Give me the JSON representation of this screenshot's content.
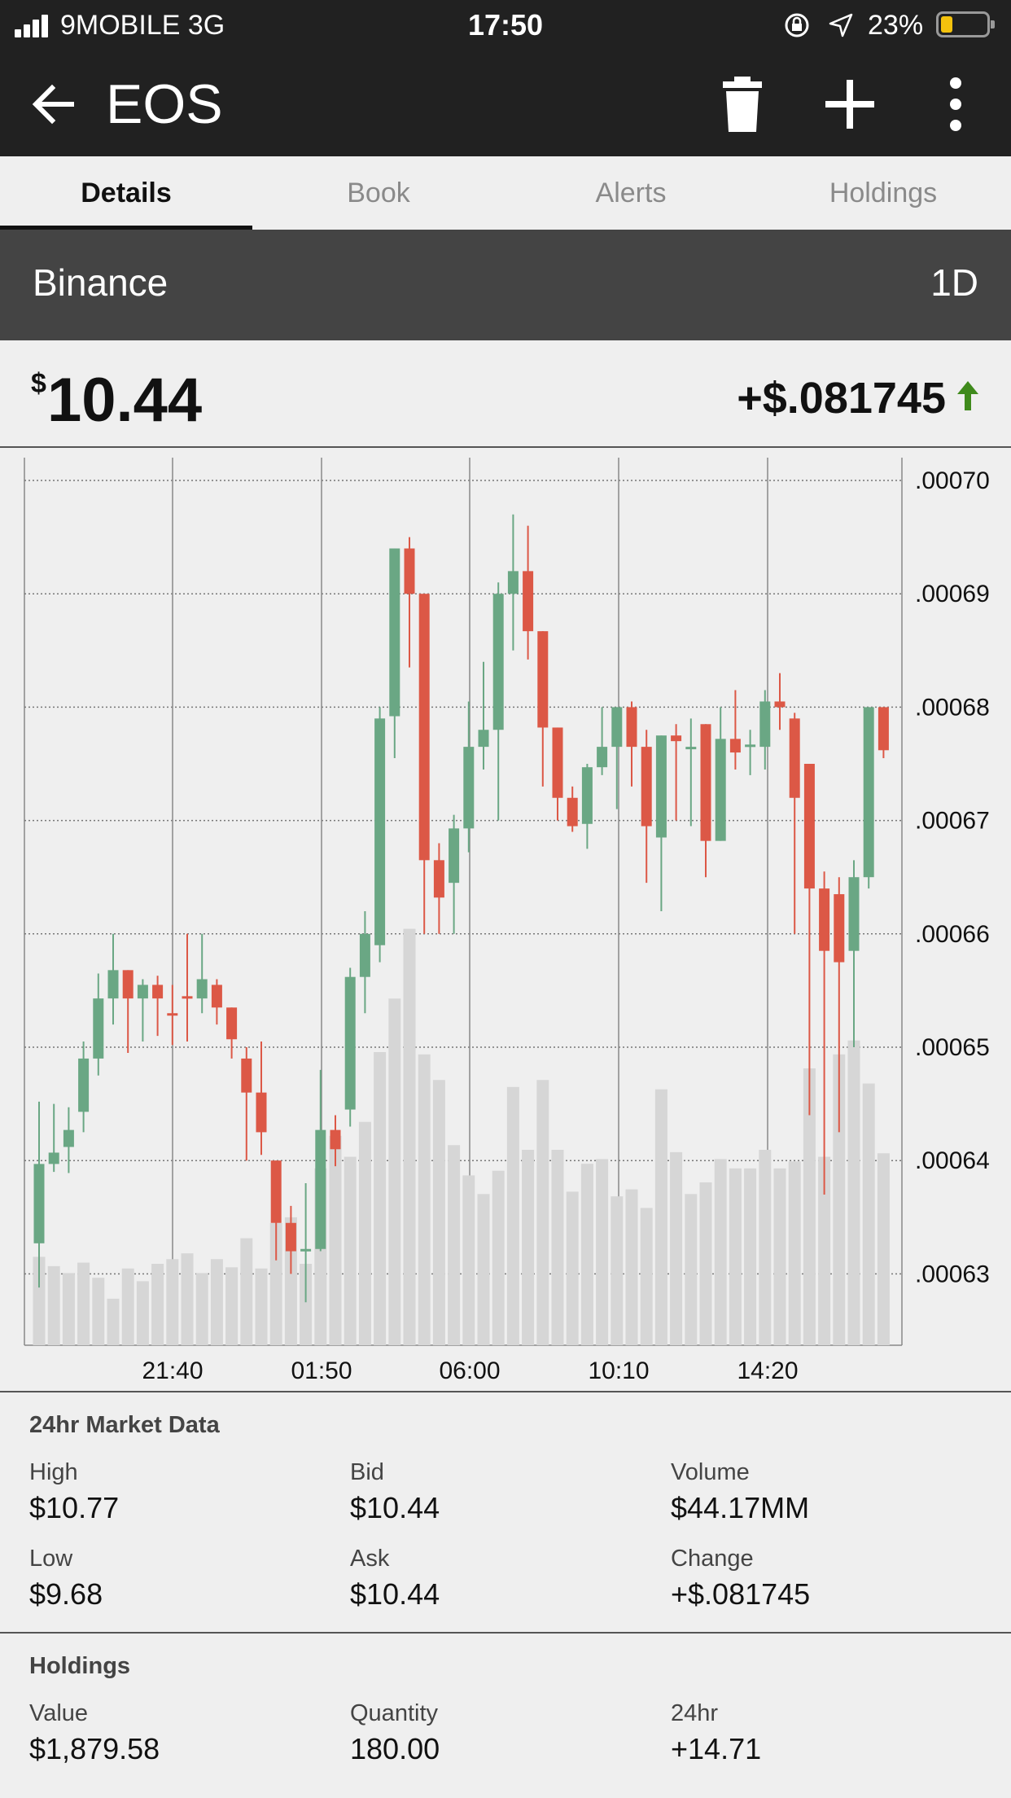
{
  "status_bar": {
    "carrier": "9MOBILE   3G",
    "time": "17:50",
    "battery_pct": "23%",
    "battery_level": 0.23,
    "icons": [
      "signal-icon",
      "rotation-lock-icon",
      "location-arrow-icon",
      "battery-icon"
    ]
  },
  "app_bar": {
    "title": "EOS",
    "icons": [
      "back-arrow-icon",
      "trash-icon",
      "plus-icon",
      "more-vert-icon"
    ]
  },
  "tabs": [
    {
      "label": "Details",
      "active": true
    },
    {
      "label": "Book",
      "active": false
    },
    {
      "label": "Alerts",
      "active": false
    },
    {
      "label": "Holdings",
      "active": false
    }
  ],
  "exchange": {
    "name": "Binance",
    "range": "1D"
  },
  "price": {
    "currency": "$",
    "value": "10.44",
    "change": "+$.081745",
    "direction": "up"
  },
  "colors": {
    "up": "#6aa784",
    "down": "#dc5846",
    "volume": "#d6d6d6",
    "arrow": "#3f8a1c",
    "appbar": "#212121",
    "exchange_bar": "#444444"
  },
  "chart_data": {
    "type": "candlestick",
    "y_tick_labels": [
      ".00070",
      ".00069",
      ".00068",
      ".00067",
      ".00066",
      ".00065",
      ".00064",
      ".00063"
    ],
    "ylim": [
      0.000626,
      0.000707
    ],
    "x_tick_labels": [
      "21:40",
      "01:50",
      "06:00",
      "10:10",
      "14:20"
    ],
    "grid": true,
    "candles": [
      {
        "o": 0.0006327,
        "c": 0.0006397,
        "h": 0.0006452,
        "l": 0.0006288
      },
      {
        "o": 0.0006397,
        "c": 0.0006407,
        "h": 0.000645,
        "l": 0.000639
      },
      {
        "o": 0.0006412,
        "c": 0.0006427,
        "h": 0.0006447,
        "l": 0.0006389
      },
      {
        "o": 0.0006443,
        "c": 0.000649,
        "h": 0.0006505,
        "l": 0.0006425
      },
      {
        "o": 0.000649,
        "c": 0.0006543,
        "h": 0.0006565,
        "l": 0.0006475
      },
      {
        "o": 0.0006543,
        "c": 0.0006568,
        "h": 0.00066,
        "l": 0.000652
      },
      {
        "o": 0.0006568,
        "c": 0.0006543,
        "h": 0.0006568,
        "l": 0.0006495
      },
      {
        "o": 0.0006543,
        "c": 0.0006555,
        "h": 0.000656,
        "l": 0.0006505
      },
      {
        "o": 0.0006555,
        "c": 0.0006543,
        "h": 0.0006563,
        "l": 0.000651
      },
      {
        "o": 0.000653,
        "c": 0.0006528,
        "h": 0.0006555,
        "l": 0.0006502
      },
      {
        "o": 0.0006545,
        "c": 0.0006543,
        "h": 0.00066,
        "l": 0.0006505
      },
      {
        "o": 0.0006543,
        "c": 0.000656,
        "h": 0.00066,
        "l": 0.000653
      },
      {
        "o": 0.0006555,
        "c": 0.0006535,
        "h": 0.000656,
        "l": 0.000652
      },
      {
        "o": 0.0006535,
        "c": 0.0006507,
        "h": 0.0006535,
        "l": 0.000649
      },
      {
        "o": 0.000649,
        "c": 0.000646,
        "h": 0.00065,
        "l": 0.00064
      },
      {
        "o": 0.000646,
        "c": 0.0006425,
        "h": 0.0006505,
        "l": 0.0006405
      },
      {
        "o": 0.00064,
        "c": 0.0006345,
        "h": 0.00064,
        "l": 0.0006312
      },
      {
        "o": 0.0006345,
        "c": 0.000632,
        "h": 0.000636,
        "l": 0.00063
      },
      {
        "o": 0.000632,
        "c": 0.0006322,
        "h": 0.000638,
        "l": 0.0006275
      },
      {
        "o": 0.0006322,
        "c": 0.0006427,
        "h": 0.000648,
        "l": 0.000632
      },
      {
        "o": 0.0006427,
        "c": 0.000641,
        "h": 0.000644,
        "l": 0.0006395
      },
      {
        "o": 0.0006445,
        "c": 0.0006562,
        "h": 0.000657,
        "l": 0.000643
      },
      {
        "o": 0.0006562,
        "c": 0.00066,
        "h": 0.000662,
        "l": 0.000653
      },
      {
        "o": 0.000659,
        "c": 0.000679,
        "h": 0.00068,
        "l": 0.0006575
      },
      {
        "o": 0.0006792,
        "c": 0.000694,
        "h": 0.000694,
        "l": 0.0006755
      },
      {
        "o": 0.000694,
        "c": 0.00069,
        "h": 0.000695,
        "l": 0.0006835
      },
      {
        "o": 0.00069,
        "c": 0.0006665,
        "h": 0.00069,
        "l": 0.00066
      },
      {
        "o": 0.0006665,
        "c": 0.0006632,
        "h": 0.000668,
        "l": 0.00066
      },
      {
        "o": 0.0006645,
        "c": 0.0006693,
        "h": 0.0006705,
        "l": 0.00066
      },
      {
        "o": 0.0006693,
        "c": 0.0006765,
        "h": 0.0006805,
        "l": 0.0006672
      },
      {
        "o": 0.0006765,
        "c": 0.000678,
        "h": 0.000684,
        "l": 0.0006745
      },
      {
        "o": 0.000678,
        "c": 0.00069,
        "h": 0.000691,
        "l": 0.00067
      },
      {
        "o": 0.00069,
        "c": 0.000692,
        "h": 0.000697,
        "l": 0.000685
      },
      {
        "o": 0.000692,
        "c": 0.0006867,
        "h": 0.000696,
        "l": 0.0006842
      },
      {
        "o": 0.0006867,
        "c": 0.0006782,
        "h": 0.0006867,
        "l": 0.000673
      },
      {
        "o": 0.0006782,
        "c": 0.000672,
        "h": 0.0006782,
        "l": 0.00067
      },
      {
        "o": 0.000672,
        "c": 0.0006695,
        "h": 0.000673,
        "l": 0.000669
      },
      {
        "o": 0.0006697,
        "c": 0.0006747,
        "h": 0.000675,
        "l": 0.0006675
      },
      {
        "o": 0.0006747,
        "c": 0.0006765,
        "h": 0.00068,
        "l": 0.000674
      },
      {
        "o": 0.0006765,
        "c": 0.00068,
        "h": 0.00068,
        "l": 0.000671
      },
      {
        "o": 0.00068,
        "c": 0.0006765,
        "h": 0.0006805,
        "l": 0.000673
      },
      {
        "o": 0.0006765,
        "c": 0.0006695,
        "h": 0.000678,
        "l": 0.0006645
      },
      {
        "o": 0.0006685,
        "c": 0.0006775,
        "h": 0.0006775,
        "l": 0.000662
      },
      {
        "o": 0.0006775,
        "c": 0.000677,
        "h": 0.0006785,
        "l": 0.00067
      },
      {
        "o": 0.0006765,
        "c": 0.0006765,
        "h": 0.000679,
        "l": 0.0006695
      },
      {
        "o": 0.0006785,
        "c": 0.0006682,
        "h": 0.0006785,
        "l": 0.000665
      },
      {
        "o": 0.0006682,
        "c": 0.0006772,
        "h": 0.00068,
        "l": 0.0006682
      },
      {
        "o": 0.0006772,
        "c": 0.000676,
        "h": 0.0006815,
        "l": 0.0006745
      },
      {
        "o": 0.0006765,
        "c": 0.0006767,
        "h": 0.000678,
        "l": 0.000674
      },
      {
        "o": 0.0006765,
        "c": 0.0006805,
        "h": 0.0006815,
        "l": 0.0006745
      },
      {
        "o": 0.0006805,
        "c": 0.00068,
        "h": 0.000683,
        "l": 0.000678
      },
      {
        "o": 0.000679,
        "c": 0.000672,
        "h": 0.0006795,
        "l": 0.00066
      },
      {
        "o": 0.000675,
        "c": 0.000664,
        "h": 0.000675,
        "l": 0.000644
      },
      {
        "o": 0.000664,
        "c": 0.0006585,
        "h": 0.0006655,
        "l": 0.000637
      },
      {
        "o": 0.0006635,
        "c": 0.0006575,
        "h": 0.000665,
        "l": 0.0006425
      },
      {
        "o": 0.0006585,
        "c": 0.000665,
        "h": 0.0006665,
        "l": 0.00065
      },
      {
        "o": 0.000665,
        "c": 0.00068,
        "h": 0.00068,
        "l": 0.000664
      },
      {
        "o": 0.00068,
        "c": 0.0006762,
        "h": 0.00068,
        "l": 0.0006755
      }
    ],
    "volume": [
      76,
      68,
      62,
      71,
      58,
      40,
      66,
      55,
      70,
      74,
      79,
      62,
      74,
      67,
      92,
      66,
      105,
      110,
      70,
      152,
      180,
      162,
      192,
      252,
      298,
      358,
      250,
      228,
      172,
      146,
      130,
      150,
      222,
      168,
      228,
      168,
      132,
      156,
      160,
      128,
      134,
      118,
      220,
      166,
      130,
      140,
      160,
      152,
      152,
      168,
      152,
      158,
      238,
      162,
      250,
      262,
      225,
      165
    ]
  },
  "market_data": {
    "heading": "24hr Market Data",
    "high_label": "High",
    "high": "$10.77",
    "bid_label": "Bid",
    "bid": "$10.44",
    "volume_label": "Volume",
    "volume": "$44.17MM",
    "low_label": "Low",
    "low": "$9.68",
    "ask_label": "Ask",
    "ask": "$10.44",
    "change_label": "Change",
    "change": "+$.081745"
  },
  "holdings": {
    "heading": "Holdings",
    "value_label": "Value",
    "value": "$1,879.58",
    "quantity_label": "Quantity",
    "quantity": "180.00",
    "h24_label": "24hr",
    "h24": "+14.71"
  }
}
